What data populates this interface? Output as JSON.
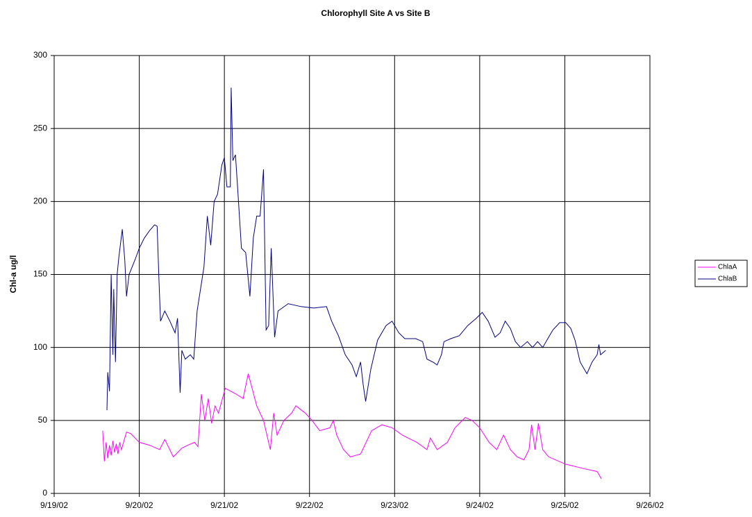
{
  "chart_data": {
    "type": "line",
    "title": "Chlorophyll Site A vs Site B",
    "ylabel": "Chl-a ug/l",
    "xlim": [
      37518,
      37525
    ],
    "xticks": [
      {
        "value": 37518,
        "label": "9/19/02"
      },
      {
        "value": 37519,
        "label": "9/20/02"
      },
      {
        "value": 37520,
        "label": "9/21/02"
      },
      {
        "value": 37521,
        "label": "9/22/02"
      },
      {
        "value": 37522,
        "label": "9/23/02"
      },
      {
        "value": 37523,
        "label": "9/24/02"
      },
      {
        "value": 37524,
        "label": "9/25/02"
      },
      {
        "value": 37525,
        "label": "9/26/02"
      }
    ],
    "ylim": [
      0,
      300
    ],
    "yticks": [
      0,
      50,
      100,
      150,
      200,
      250,
      300
    ],
    "grid": true,
    "legend": "right",
    "series": [
      {
        "name": "ChlaA",
        "color": "#ff00ff",
        "x": [
          37518.57,
          37518.59,
          37518.61,
          37518.63,
          37518.65,
          37518.67,
          37518.69,
          37518.71,
          37518.73,
          37518.75,
          37518.77,
          37518.79,
          37518.85,
          37518.9,
          37519.0,
          37519.12,
          37519.24,
          37519.3,
          37519.4,
          37519.5,
          37519.57,
          37519.65,
          37519.69,
          37519.73,
          37519.77,
          37519.81,
          37519.85,
          37519.89,
          37519.93,
          37520.01,
          37520.14,
          37520.22,
          37520.28,
          37520.38,
          37520.46,
          37520.54,
          37520.58,
          37520.62,
          37520.7,
          37520.79,
          37520.84,
          37520.95,
          37521.03,
          37521.12,
          37521.24,
          37521.28,
          37521.32,
          37521.4,
          37521.48,
          37521.6,
          37521.73,
          37521.85,
          37521.97,
          37522.09,
          37522.26,
          37522.38,
          37522.42,
          37522.5,
          37522.62,
          37522.71,
          37522.83,
          37522.91,
          37523.0,
          37523.11,
          37523.2,
          37523.28,
          37523.36,
          37523.44,
          37523.52,
          37523.58,
          37523.61,
          37523.65,
          37523.69,
          37523.74,
          37523.81,
          37524.01,
          37524.22,
          37524.38,
          37524.43
        ],
        "values": [
          43,
          22,
          35,
          24,
          33,
          26,
          36,
          28,
          34,
          27,
          35,
          30,
          42,
          41,
          35,
          33,
          30,
          37,
          25,
          31,
          33,
          35,
          32,
          68,
          50,
          65,
          48,
          60,
          55,
          72,
          68,
          65,
          82,
          60,
          50,
          30,
          55,
          40,
          50,
          55,
          60,
          55,
          50,
          43,
          45,
          50,
          40,
          30,
          25,
          27,
          43,
          47,
          45,
          40,
          35,
          30,
          38,
          30,
          35,
          45,
          52,
          50,
          45,
          35,
          30,
          40,
          30,
          25,
          23,
          30,
          47,
          30,
          48,
          30,
          25,
          20,
          17,
          15,
          10
        ]
      },
      {
        "name": "ChlaB",
        "color": "#000080",
        "x": [
          37518.62,
          37518.63,
          37518.65,
          37518.67,
          37518.69,
          37518.7,
          37518.72,
          37518.74,
          37518.76,
          37518.8,
          37518.83,
          37518.85,
          37518.88,
          37518.95,
          37519.0,
          37519.06,
          37519.12,
          37519.18,
          37519.21,
          37519.23,
          37519.25,
          37519.3,
          37519.36,
          37519.42,
          37519.45,
          37519.48,
          37519.5,
          37519.54,
          37519.6,
          37519.64,
          37519.68,
          37519.72,
          37519.76,
          37519.8,
          37519.84,
          37519.88,
          37519.92,
          37519.97,
          37520.0,
          37520.03,
          37520.07,
          37520.08,
          37520.1,
          37520.13,
          37520.16,
          37520.2,
          37520.25,
          37520.3,
          37520.34,
          37520.38,
          37520.42,
          37520.46,
          37520.49,
          37520.52,
          37520.55,
          37520.59,
          37520.63,
          37520.75,
          37520.9,
          37521.05,
          37521.2,
          37521.26,
          37521.34,
          37521.42,
          37521.5,
          37521.55,
          37521.6,
          37521.63,
          37521.66,
          37521.72,
          37521.8,
          37521.9,
          37521.97,
          37522.05,
          37522.12,
          37522.25,
          37522.33,
          37522.38,
          37522.45,
          37522.5,
          37522.55,
          37522.58,
          37522.66,
          37522.76,
          37522.86,
          37522.96,
          37523.03,
          37523.1,
          37523.18,
          37523.24,
          37523.3,
          37523.36,
          37523.42,
          37523.48,
          37523.56,
          37523.62,
          37523.68,
          37523.74,
          37523.8,
          37523.86,
          37523.94,
          37524.01,
          37524.07,
          37524.12,
          37524.18,
          37524.23,
          37524.26,
          37524.32,
          37524.38,
          37524.4,
          37524.42,
          37524.48
        ],
        "values": [
          57,
          83,
          70,
          150,
          95,
          140,
          90,
          150,
          162,
          181,
          160,
          135,
          150,
          160,
          168,
          175,
          180,
          184,
          183,
          148,
          118,
          125,
          118,
          110,
          120,
          69,
          98,
          92,
          95,
          92,
          125,
          140,
          155,
          190,
          170,
          200,
          205,
          225,
          230,
          210,
          210,
          278,
          228,
          232,
          205,
          168,
          165,
          135,
          175,
          190,
          190,
          222,
          112,
          115,
          168,
          107,
          125,
          130,
          128,
          127,
          128,
          118,
          108,
          95,
          88,
          80,
          90,
          75,
          63,
          85,
          105,
          115,
          118,
          110,
          106,
          106,
          104,
          92,
          90,
          88,
          95,
          104,
          106,
          108,
          115,
          120,
          124,
          118,
          107,
          110,
          118,
          113,
          104,
          100,
          104,
          100,
          104,
          100,
          106,
          112,
          117,
          117,
          113,
          105,
          90,
          85,
          82,
          90,
          95,
          102,
          95,
          98
        ]
      }
    ]
  }
}
